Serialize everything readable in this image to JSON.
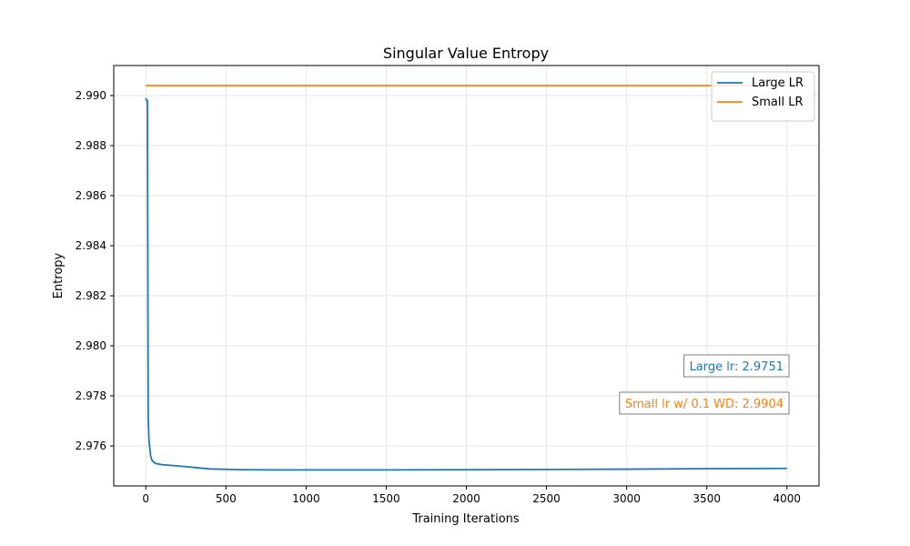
{
  "chart_data": {
    "type": "line",
    "title": "Singular Value Entropy",
    "xlabel": "Training Iterations",
    "ylabel": "Entropy",
    "xlim": [
      -200,
      4200
    ],
    "ylim": [
      2.9744,
      2.9912
    ],
    "x_ticks": [
      0,
      500,
      1000,
      1500,
      2000,
      2500,
      3000,
      3500,
      4000
    ],
    "x_tick_labels": [
      "0",
      "500",
      "1000",
      "1500",
      "2000",
      "2500",
      "3000",
      "3500",
      "4000"
    ],
    "y_ticks": [
      2.976,
      2.978,
      2.98,
      2.982,
      2.984,
      2.986,
      2.988,
      2.99
    ],
    "y_tick_labels": [
      "2.976",
      "2.978",
      "2.980",
      "2.982",
      "2.984",
      "2.986",
      "2.988",
      "2.990"
    ],
    "grid": true,
    "legend_position": "top-right",
    "series": [
      {
        "name": "Large LR",
        "color": "#1f77b4",
        "x": [
          0,
          5,
          10,
          15,
          20,
          30,
          40,
          60,
          100,
          200,
          400,
          600,
          800,
          1000,
          1500,
          2000,
          2500,
          3000,
          3500,
          4000
        ],
        "y": [
          2.9899,
          2.9898,
          2.9898,
          2.9771,
          2.9762,
          2.9756,
          2.9754,
          2.9753,
          2.97525,
          2.9752,
          2.97508,
          2.97505,
          2.97504,
          2.97504,
          2.97504,
          2.97505,
          2.97506,
          2.97507,
          2.97509,
          2.9751
        ]
      },
      {
        "name": "Small LR",
        "color": "#ff7f0e",
        "x": [
          0,
          4000
        ],
        "y": [
          2.9904,
          2.9904
        ]
      }
    ],
    "annotations": [
      {
        "text": "Large lr: 2.9751",
        "color": "#1f77b4"
      },
      {
        "text": "Small lr w/ 0.1 WD: 2.9904",
        "color": "#ff7f0e"
      }
    ]
  }
}
